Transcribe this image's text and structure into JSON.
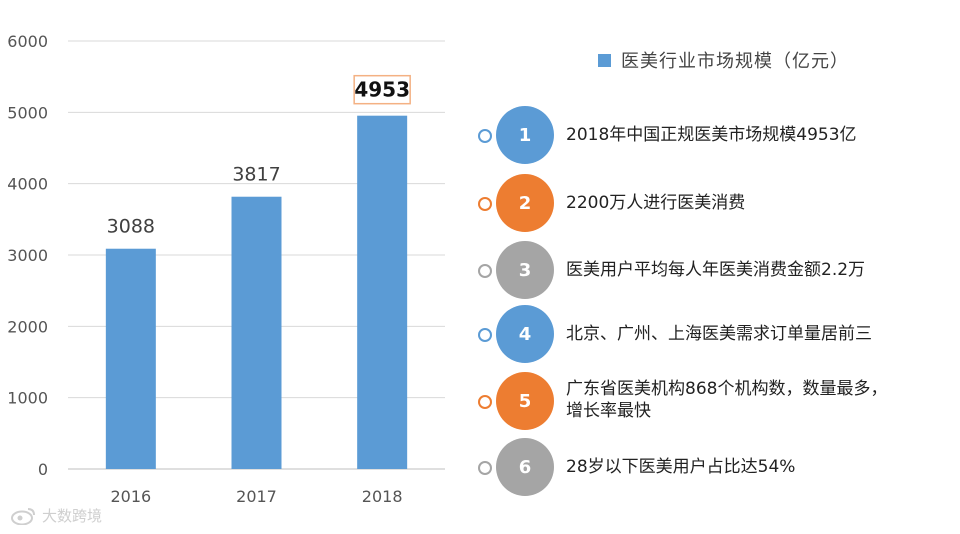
{
  "chart_data": {
    "type": "bar",
    "categories": [
      "2016",
      "2017",
      "2018"
    ],
    "values": [
      3088,
      3817,
      4953
    ],
    "data_labels": [
      "3088",
      "3817",
      "4953"
    ],
    "highlighted_label_index": 2,
    "series": [
      {
        "name": "医美行业市场规模（亿元）",
        "values": [
          3088,
          3817,
          4953
        ]
      }
    ],
    "ylim": [
      0,
      6000
    ],
    "yticks": [
      "0",
      "1000",
      "2000",
      "3000",
      "4000",
      "5000",
      "6000"
    ],
    "grid": "horizontal",
    "legend_position": "top-right",
    "bar_color": "#5b9bd5"
  },
  "legend": {
    "label": "医美行业市场规模（亿元）"
  },
  "facts": [
    {
      "number": "1",
      "text": "2018年中国正规医美市场规模4953亿",
      "color": "#5b9bd5",
      "ring_color": "#5b9bd5"
    },
    {
      "number": "2",
      "text": "2200万人进行医美消费",
      "color": "#ed7d31",
      "ring_color": "#ed7d31"
    },
    {
      "number": "3",
      "text": "医美用户平均每人年医美消费金额2.2万",
      "color": "#a5a5a5",
      "ring_color": "#a5a5a5"
    },
    {
      "number": "4",
      "text": "北京、广州、上海医美需求订单量居前三",
      "color": "#5b9bd5",
      "ring_color": "#5b9bd5"
    },
    {
      "number": "5",
      "text": "广东省医美机构868个机构数，数量最多，",
      "text2": "增长率最快",
      "color": "#ed7d31",
      "ring_color": "#ed7d31"
    },
    {
      "number": "6",
      "text": "28岁以下医美用户占比达54%",
      "color": "#a5a5a5",
      "ring_color": "#a5a5a5"
    }
  ],
  "watermark": {
    "text": "大数跨境"
  }
}
